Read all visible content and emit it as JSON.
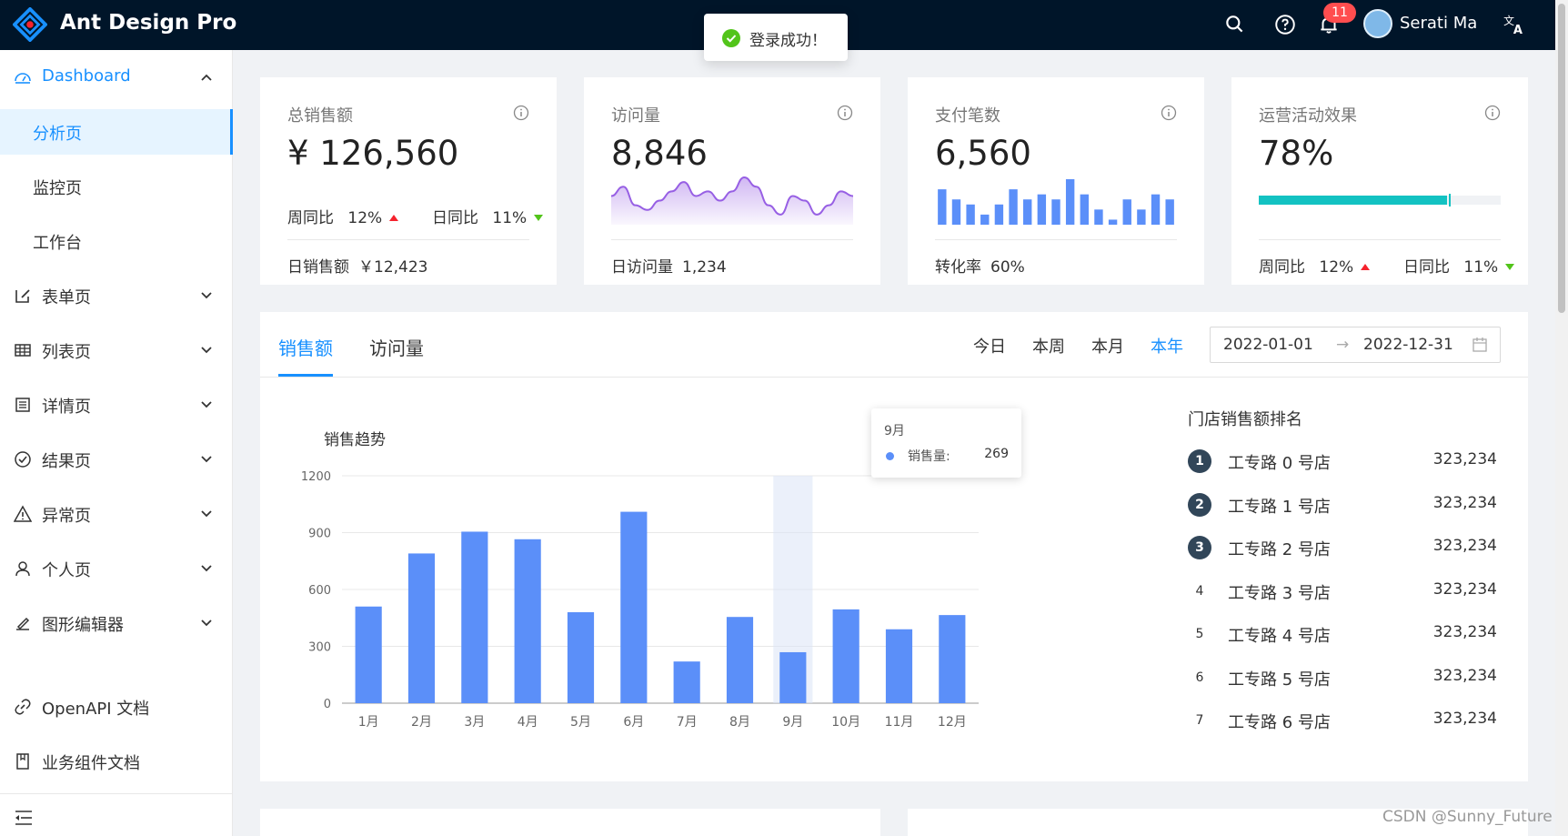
{
  "header": {
    "app_title": "Ant Design Pro",
    "notification_count": "11",
    "user_name": "Serati Ma"
  },
  "toast": {
    "text": "登录成功！"
  },
  "sidebar": {
    "dashboard": "Dashboard",
    "sub_items": [
      "分析页",
      "监控页",
      "工作台"
    ],
    "items": [
      "表单页",
      "列表页",
      "详情页",
      "结果页",
      "异常页",
      "个人页",
      "图形编辑器"
    ],
    "docs": [
      "OpenAPI 文档",
      "业务组件文档"
    ]
  },
  "cards": {
    "sales": {
      "title": "总销售额",
      "value": "¥ 126,560",
      "week_label": "周同比",
      "week_value": "12%",
      "day_label": "日同比",
      "day_value": "11%",
      "footer_label": "日销售额",
      "footer_value": "￥12,423"
    },
    "visits": {
      "title": "访问量",
      "value": "8,846",
      "footer_label": "日访问量",
      "footer_value": "1,234"
    },
    "payments": {
      "title": "支付笔数",
      "value": "6,560",
      "footer_label": "转化率",
      "footer_value": "60%"
    },
    "operations": {
      "title": "运营活动效果",
      "value": "78%",
      "progress_fraction": 0.78,
      "week_label": "周同比",
      "week_value": "12%",
      "day_label": "日同比",
      "day_value": "11%"
    }
  },
  "sales_panel": {
    "tabs": [
      "销售额",
      "访问量"
    ],
    "periods": [
      "今日",
      "本周",
      "本月",
      "本年"
    ],
    "active_period": "本年",
    "date_start": "2022-01-01",
    "date_end": "2022-12-31",
    "chart_title": "销售趋势",
    "tooltip": {
      "title": "9月",
      "name": "销售量:",
      "value": "269"
    },
    "ranking_title": "门店销售额排名",
    "ranking": [
      {
        "rank": "1",
        "name": "工专路 0 号店",
        "value": "323,234"
      },
      {
        "rank": "2",
        "name": "工专路 1 号店",
        "value": "323,234"
      },
      {
        "rank": "3",
        "name": "工专路 2 号店",
        "value": "323,234"
      },
      {
        "rank": "4",
        "name": "工专路 3 号店",
        "value": "323,234"
      },
      {
        "rank": "5",
        "name": "工专路 4 号店",
        "value": "323,234"
      },
      {
        "rank": "6",
        "name": "工专路 5 号店",
        "value": "323,234"
      },
      {
        "rank": "7",
        "name": "工专路 6 号店",
        "value": "323,234"
      }
    ]
  },
  "chart_data": {
    "type": "bar",
    "title": "销售趋势",
    "categories": [
      "1月",
      "2月",
      "3月",
      "4月",
      "5月",
      "6月",
      "7月",
      "8月",
      "9月",
      "10月",
      "11月",
      "12月"
    ],
    "values": [
      510,
      790,
      905,
      865,
      480,
      1010,
      220,
      455,
      269,
      495,
      390,
      465
    ],
    "yticks": [
      0,
      300,
      600,
      900,
      1200
    ],
    "ylim": [
      0,
      1200
    ],
    "highlight_category": "9月",
    "grid": true,
    "color": "#5b8ff9"
  },
  "mini_charts": {
    "visits_area": [
      5,
      7,
      3,
      2,
      4,
      6,
      8,
      5,
      6,
      4,
      6,
      9,
      7,
      3,
      1,
      5,
      4,
      1,
      3,
      6,
      5
    ],
    "payments_bars": [
      7,
      5,
      4,
      2,
      4,
      7,
      5,
      6,
      5,
      9,
      6,
      3,
      1,
      5,
      3,
      6,
      5
    ],
    "area_color": "#975fe4",
    "bar_color": "#5b8ff9",
    "progress_color": "#13c2c2"
  },
  "watermark": "CSDN @Sunny_Future",
  "colors": {
    "primary": "#1890ff",
    "header_bg": "#001529"
  }
}
